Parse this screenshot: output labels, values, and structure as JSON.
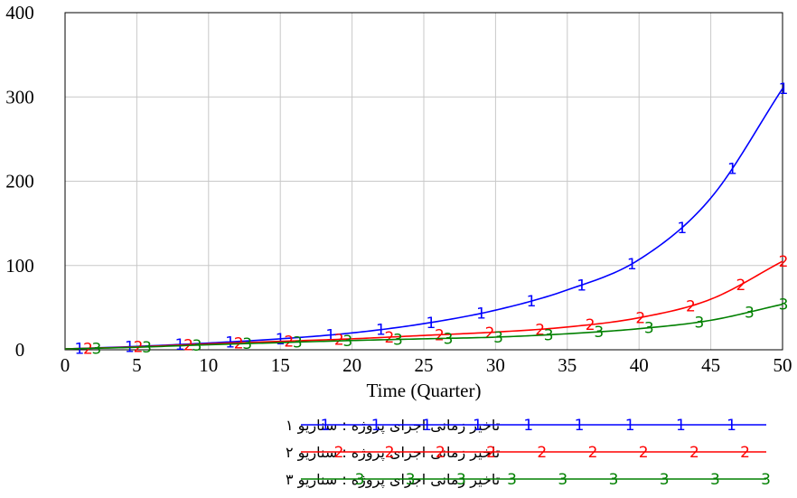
{
  "chart_data": {
    "type": "line",
    "xlabel": "Time (Quarter)",
    "ylabel": "",
    "xlim": [
      0,
      50
    ],
    "ylim": [
      0,
      400
    ],
    "x_ticks": [
      "0",
      "5",
      "10",
      "15",
      "20",
      "25",
      "30",
      "35",
      "40",
      "45",
      "50"
    ],
    "y_ticks": [
      "0",
      "100",
      "200",
      "300",
      "400"
    ],
    "grid": true,
    "legend_position": "bottom",
    "x": [
      0,
      5,
      10,
      15,
      20,
      25,
      30,
      35,
      40,
      45,
      50
    ],
    "series": [
      {
        "name": "تاخیر زمانی اجرای پروژه : سناریو ۱",
        "marker": "1",
        "color": "#0000ff",
        "values": [
          1,
          4,
          8,
          13,
          20,
          31,
          47,
          71,
          107,
          180,
          310
        ]
      },
      {
        "name": "تاخیر زمانی اجرای پروژه : سناریو ۲",
        "marker": "2",
        "color": "#ff0000",
        "values": [
          1,
          3.5,
          7,
          10,
          13,
          17,
          21,
          27,
          38,
          60,
          105
        ]
      },
      {
        "name": "تاخیر زمانی اجرای پروژه : سناریو ۳",
        "marker": "3",
        "color": "#008000",
        "values": [
          1,
          3,
          6,
          8.5,
          11,
          13,
          15,
          19,
          25,
          35,
          54
        ]
      }
    ]
  }
}
